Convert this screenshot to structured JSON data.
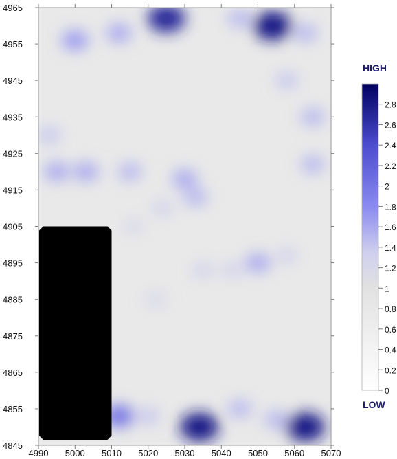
{
  "chart_data": {
    "type": "heatmap",
    "x_ticks": [
      4990,
      5000,
      5010,
      5020,
      5030,
      5040,
      5050,
      5060,
      5070
    ],
    "y_ticks": [
      4965,
      4955,
      4945,
      4935,
      4925,
      4915,
      4905,
      4895,
      4885,
      4875,
      4865,
      4855,
      4845
    ],
    "xlim": [
      4990,
      5070
    ],
    "ylim": [
      4845,
      4965
    ],
    "legend_high_label": "HIGH",
    "legend_low_label": "LOW",
    "colorbar_ticks": [
      "2.8",
      "2.6",
      "2.4",
      "2.2",
      "2",
      "1.8",
      "1.6",
      "1.4",
      "1.2",
      "1",
      "0.8",
      "0.6",
      "0.4",
      "0.2",
      "0"
    ],
    "colorbar_range": [
      0,
      3
    ],
    "colors": {
      "low": "#ffffff",
      "mid": "#8a8af0",
      "high": "#000060",
      "base": "#e9e9e9",
      "masked": "#000000"
    },
    "masked_region": {
      "x": [
        4990,
        5010
      ],
      "y": [
        4845,
        4905
      ]
    },
    "hotspots": [
      {
        "x": 5025,
        "y": 4962,
        "value": 2.7
      },
      {
        "x": 5054,
        "y": 4960,
        "value": 2.8
      },
      {
        "x": 5034,
        "y": 4850,
        "value": 2.8
      },
      {
        "x": 5063,
        "y": 4850,
        "value": 2.8
      },
      {
        "x": 5012,
        "y": 4853,
        "value": 2.0
      },
      {
        "x": 5000,
        "y": 4956,
        "value": 1.7
      },
      {
        "x": 5012,
        "y": 4958,
        "value": 1.6
      },
      {
        "x": 5045,
        "y": 4962,
        "value": 1.5
      },
      {
        "x": 5063,
        "y": 4958,
        "value": 1.5
      },
      {
        "x": 5058,
        "y": 4945,
        "value": 1.4
      },
      {
        "x": 5065,
        "y": 4935,
        "value": 1.5
      },
      {
        "x": 4993,
        "y": 4930,
        "value": 1.4
      },
      {
        "x": 4995,
        "y": 4920,
        "value": 1.6
      },
      {
        "x": 5003,
        "y": 4920,
        "value": 1.6
      },
      {
        "x": 5015,
        "y": 4920,
        "value": 1.5
      },
      {
        "x": 5030,
        "y": 4918,
        "value": 1.6
      },
      {
        "x": 5033,
        "y": 4913,
        "value": 1.5
      },
      {
        "x": 5065,
        "y": 4922,
        "value": 1.5
      },
      {
        "x": 5024,
        "y": 4910,
        "value": 1.3
      },
      {
        "x": 5035,
        "y": 4893,
        "value": 1.3
      },
      {
        "x": 5043,
        "y": 4893,
        "value": 1.3
      },
      {
        "x": 5050,
        "y": 4895,
        "value": 1.6
      },
      {
        "x": 5058,
        "y": 4897,
        "value": 1.3
      },
      {
        "x": 5022,
        "y": 4885,
        "value": 1.2
      },
      {
        "x": 5045,
        "y": 4855,
        "value": 1.5
      },
      {
        "x": 5055,
        "y": 4852,
        "value": 1.5
      },
      {
        "x": 5020,
        "y": 4853,
        "value": 1.4
      },
      {
        "x": 5016,
        "y": 4905,
        "value": 1.2
      }
    ]
  }
}
